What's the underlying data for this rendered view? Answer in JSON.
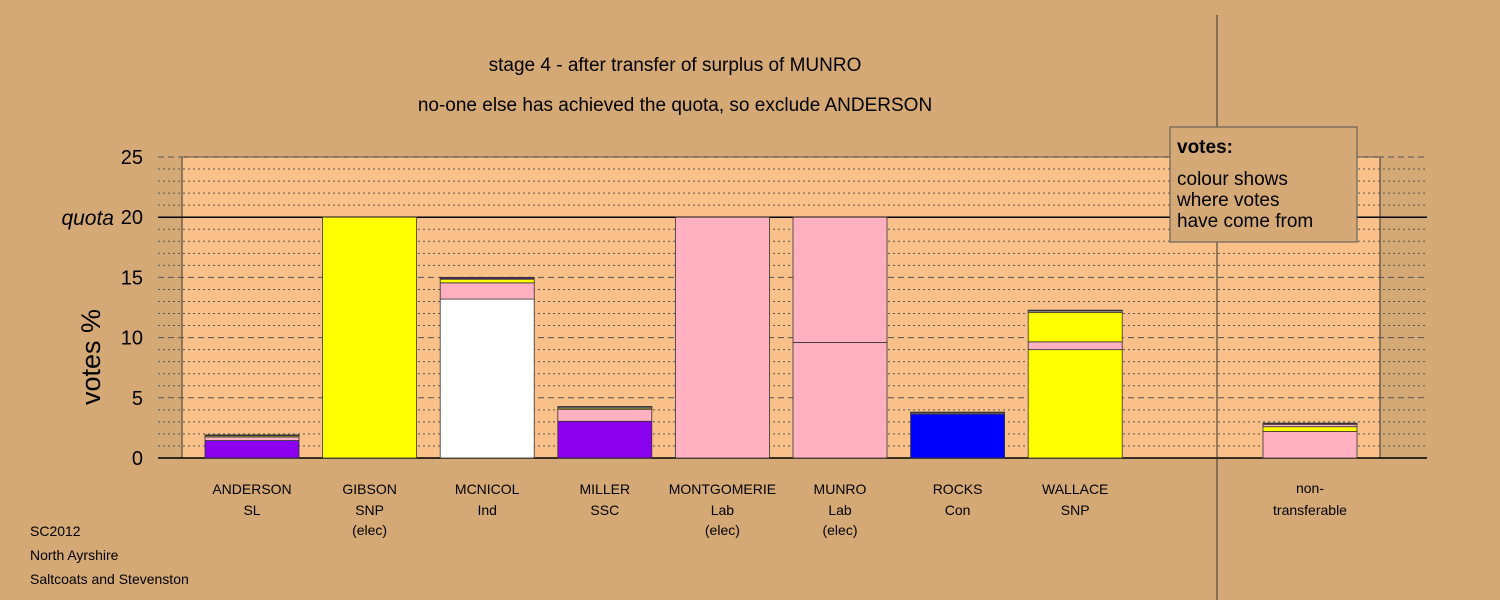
{
  "colors": {
    "background": "#d4a976",
    "plot_background": "#f9c189",
    "legend_background": "#d4a976",
    "purple": "#8b00ee",
    "pink": "#ffb0c1",
    "yellow": "#ffff00",
    "white": "#ffffff",
    "blue": "#0000ff"
  },
  "chart_data": {
    "type": "bar",
    "stacked": true,
    "title": "stage 4 - after transfer of surplus of MUNRO",
    "subtitle": "no-one else has achieved the quota, so exclude ANDERSON",
    "ylabel": "votes %",
    "ylim": [
      0,
      25
    ],
    "yticks": [
      0,
      5,
      10,
      15,
      20,
      25
    ],
    "quota": 20,
    "quota_label": "quota",
    "grid": "dashed major every 5, dotted minor every 1",
    "legend": {
      "placement": "top-right",
      "title": "votes:",
      "lines": [
        "colour shows",
        "where votes",
        "have come from"
      ]
    },
    "categories": [
      {
        "name": "ANDERSON",
        "party": "SL",
        "note": "",
        "segments": [
          {
            "color": "#8b00ee",
            "value": 1.45
          },
          {
            "color": "#ffb0c1",
            "value": 0.3
          },
          {
            "color": "#ffff00",
            "value": 0.1
          },
          {
            "color": "#ffffff",
            "value": 0.05
          },
          {
            "color": "#0000ff",
            "value": 0.02
          }
        ]
      },
      {
        "name": "GIBSON",
        "party": "SNP",
        "note": "(elec)",
        "segments": [
          {
            "color": "#ffff00",
            "value": 20
          }
        ]
      },
      {
        "name": "MCNICOL",
        "party": "Ind",
        "note": "",
        "segments": [
          {
            "color": "#ffffff",
            "value": 13.2
          },
          {
            "color": "#ffb0c1",
            "value": 1.35
          },
          {
            "color": "#ffff00",
            "value": 0.3
          },
          {
            "color": "#8b00ee",
            "value": 0.1
          },
          {
            "color": "#0000ff",
            "value": 0.05
          }
        ]
      },
      {
        "name": "MILLER",
        "party": "SSC",
        "note": "",
        "segments": [
          {
            "color": "#8b00ee",
            "value": 3.05
          },
          {
            "color": "#ffb0c1",
            "value": 1.0
          },
          {
            "color": "#ffff00",
            "value": 0.1
          },
          {
            "color": "#ffffff",
            "value": 0.1
          },
          {
            "color": "#0000ff",
            "value": 0.03
          }
        ]
      },
      {
        "name": "MONTGOMERIE",
        "party": "Lab",
        "note": "(elec)",
        "segments": [
          {
            "color": "#ffb0c1",
            "value": 20
          }
        ]
      },
      {
        "name": "MUNRO",
        "party": "Lab",
        "note": "(elec)",
        "segments": [
          {
            "color": "#ffb0c1",
            "value": 9.6
          },
          {
            "color": "#ffb0c1",
            "value": 10.4
          }
        ]
      },
      {
        "name": "ROCKS",
        "party": "Con",
        "note": "",
        "segments": [
          {
            "color": "#0000ff",
            "value": 3.65
          },
          {
            "color": "#ffb0c1",
            "value": 0.1
          },
          {
            "color": "#ffff00",
            "value": 0.04
          },
          {
            "color": "#ffffff",
            "value": 0.02
          }
        ]
      },
      {
        "name": "WALLACE",
        "party": "SNP",
        "note": "",
        "segments": [
          {
            "color": "#ffff00",
            "value": 9.0
          },
          {
            "color": "#ffb0c1",
            "value": 0.65
          },
          {
            "color": "#ffff00",
            "value": 2.45
          },
          {
            "color": "#ffffff",
            "value": 0.1
          },
          {
            "color": "#8b00ee",
            "value": 0.05
          },
          {
            "color": "#0000ff",
            "value": 0.03
          }
        ]
      }
    ],
    "nontransferable": {
      "label_line1": "non-",
      "label_line2": "transferable",
      "segments": [
        {
          "color": "#ffb0c1",
          "value": 2.2
        },
        {
          "color": "#ffff00",
          "value": 0.4
        },
        {
          "color": "#ffb0c1",
          "value": 0.2
        },
        {
          "color": "#ffffff",
          "value": 0.05
        },
        {
          "color": "#8b00ee",
          "value": 0.05
        }
      ]
    }
  },
  "footer": {
    "line1": "SC2012",
    "line2": "North Ayrshire",
    "line3": "Saltcoats and Stevenston"
  }
}
